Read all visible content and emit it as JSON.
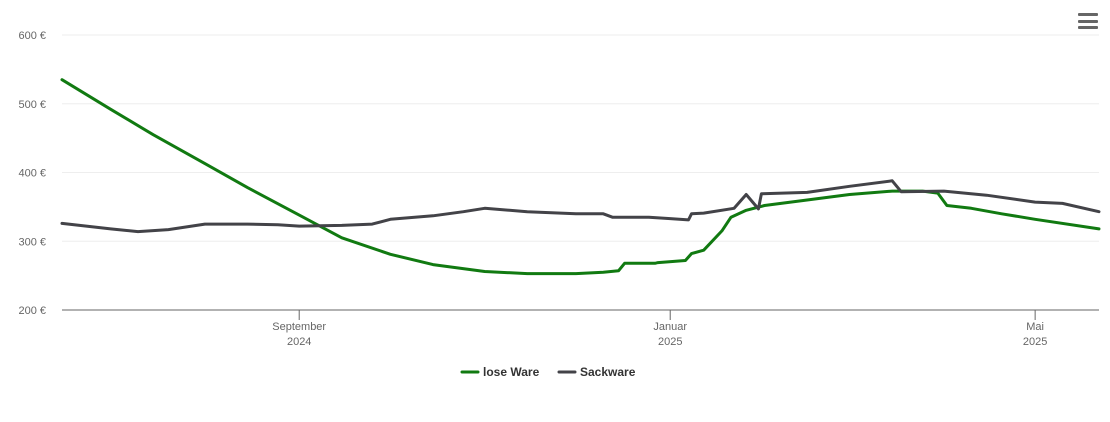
{
  "menu": {
    "icon": "hamburger-menu-icon"
  },
  "chart_data": {
    "type": "line",
    "title": "",
    "xlabel": "",
    "ylabel": "",
    "unit": "€",
    "ylim": [
      200,
      600
    ],
    "y_ticks": [
      {
        "value": 200,
        "label": "200 €"
      },
      {
        "value": 300,
        "label": "300 €"
      },
      {
        "value": 400,
        "label": "400 €"
      },
      {
        "value": 500,
        "label": "500 €"
      },
      {
        "value": 600,
        "label": "600 €"
      }
    ],
    "xlim": [
      "2024-06-15",
      "2025-05-22"
    ],
    "x_ticks": [
      {
        "date": "2024-09-01",
        "line1": "September",
        "line2": "2024"
      },
      {
        "date": "2025-01-01",
        "line1": "Januar",
        "line2": "2025"
      },
      {
        "date": "2025-05-01",
        "line1": "Mai",
        "line2": "2025"
      }
    ],
    "grid": true,
    "legend_position": "bottom-center",
    "series": [
      {
        "name": "lose Ware",
        "color": "#117a11",
        "points": [
          [
            "2024-06-15",
            535
          ],
          [
            "2024-07-01",
            492
          ],
          [
            "2024-07-15",
            455
          ],
          [
            "2024-08-01",
            413
          ],
          [
            "2024-08-15",
            378
          ],
          [
            "2024-09-01",
            338
          ],
          [
            "2024-09-15",
            305
          ],
          [
            "2024-10-01",
            281
          ],
          [
            "2024-10-15",
            266
          ],
          [
            "2024-11-01",
            256
          ],
          [
            "2024-11-15",
            253
          ],
          [
            "2024-12-01",
            253
          ],
          [
            "2024-12-10",
            255
          ],
          [
            "2024-12-15",
            257
          ],
          [
            "2024-12-17",
            268
          ],
          [
            "2024-12-27",
            268
          ],
          [
            "2024-12-28",
            269
          ],
          [
            "2025-01-06",
            272
          ],
          [
            "2025-01-08",
            282
          ],
          [
            "2025-01-12",
            287
          ],
          [
            "2025-01-18",
            315
          ],
          [
            "2025-01-21",
            335
          ],
          [
            "2025-01-26",
            345
          ],
          [
            "2025-02-01",
            352
          ],
          [
            "2025-02-15",
            360
          ],
          [
            "2025-03-01",
            368
          ],
          [
            "2025-03-15",
            373
          ],
          [
            "2025-03-25",
            373
          ],
          [
            "2025-03-30",
            370
          ],
          [
            "2025-04-02",
            352
          ],
          [
            "2025-04-10",
            348
          ],
          [
            "2025-04-20",
            340
          ],
          [
            "2025-05-01",
            332
          ],
          [
            "2025-05-22",
            318
          ]
        ]
      },
      {
        "name": "Sackware",
        "color": "#434348",
        "points": [
          [
            "2024-06-15",
            326
          ],
          [
            "2024-07-01",
            318
          ],
          [
            "2024-07-10",
            314
          ],
          [
            "2024-07-20",
            317
          ],
          [
            "2024-08-01",
            325
          ],
          [
            "2024-08-15",
            325
          ],
          [
            "2024-08-25",
            324
          ],
          [
            "2024-09-01",
            322
          ],
          [
            "2024-09-15",
            323
          ],
          [
            "2024-09-25",
            325
          ],
          [
            "2024-10-01",
            332
          ],
          [
            "2024-10-15",
            337
          ],
          [
            "2024-10-25",
            343
          ],
          [
            "2024-11-01",
            348
          ],
          [
            "2024-11-15",
            343
          ],
          [
            "2024-12-01",
            340
          ],
          [
            "2024-12-10",
            340
          ],
          [
            "2024-12-13",
            335
          ],
          [
            "2024-12-25",
            335
          ],
          [
            "2025-01-01",
            333
          ],
          [
            "2025-01-07",
            331
          ],
          [
            "2025-01-08",
            340
          ],
          [
            "2025-01-12",
            341
          ],
          [
            "2025-01-22",
            348
          ],
          [
            "2025-01-26",
            368
          ],
          [
            "2025-01-30",
            347
          ],
          [
            "2025-01-31",
            369
          ],
          [
            "2025-02-15",
            371
          ],
          [
            "2025-03-01",
            380
          ],
          [
            "2025-03-15",
            388
          ],
          [
            "2025-03-18",
            372
          ],
          [
            "2025-04-01",
            373
          ],
          [
            "2025-04-15",
            367
          ],
          [
            "2025-05-01",
            357
          ],
          [
            "2025-05-10",
            355
          ],
          [
            "2025-05-22",
            343
          ]
        ]
      }
    ]
  }
}
